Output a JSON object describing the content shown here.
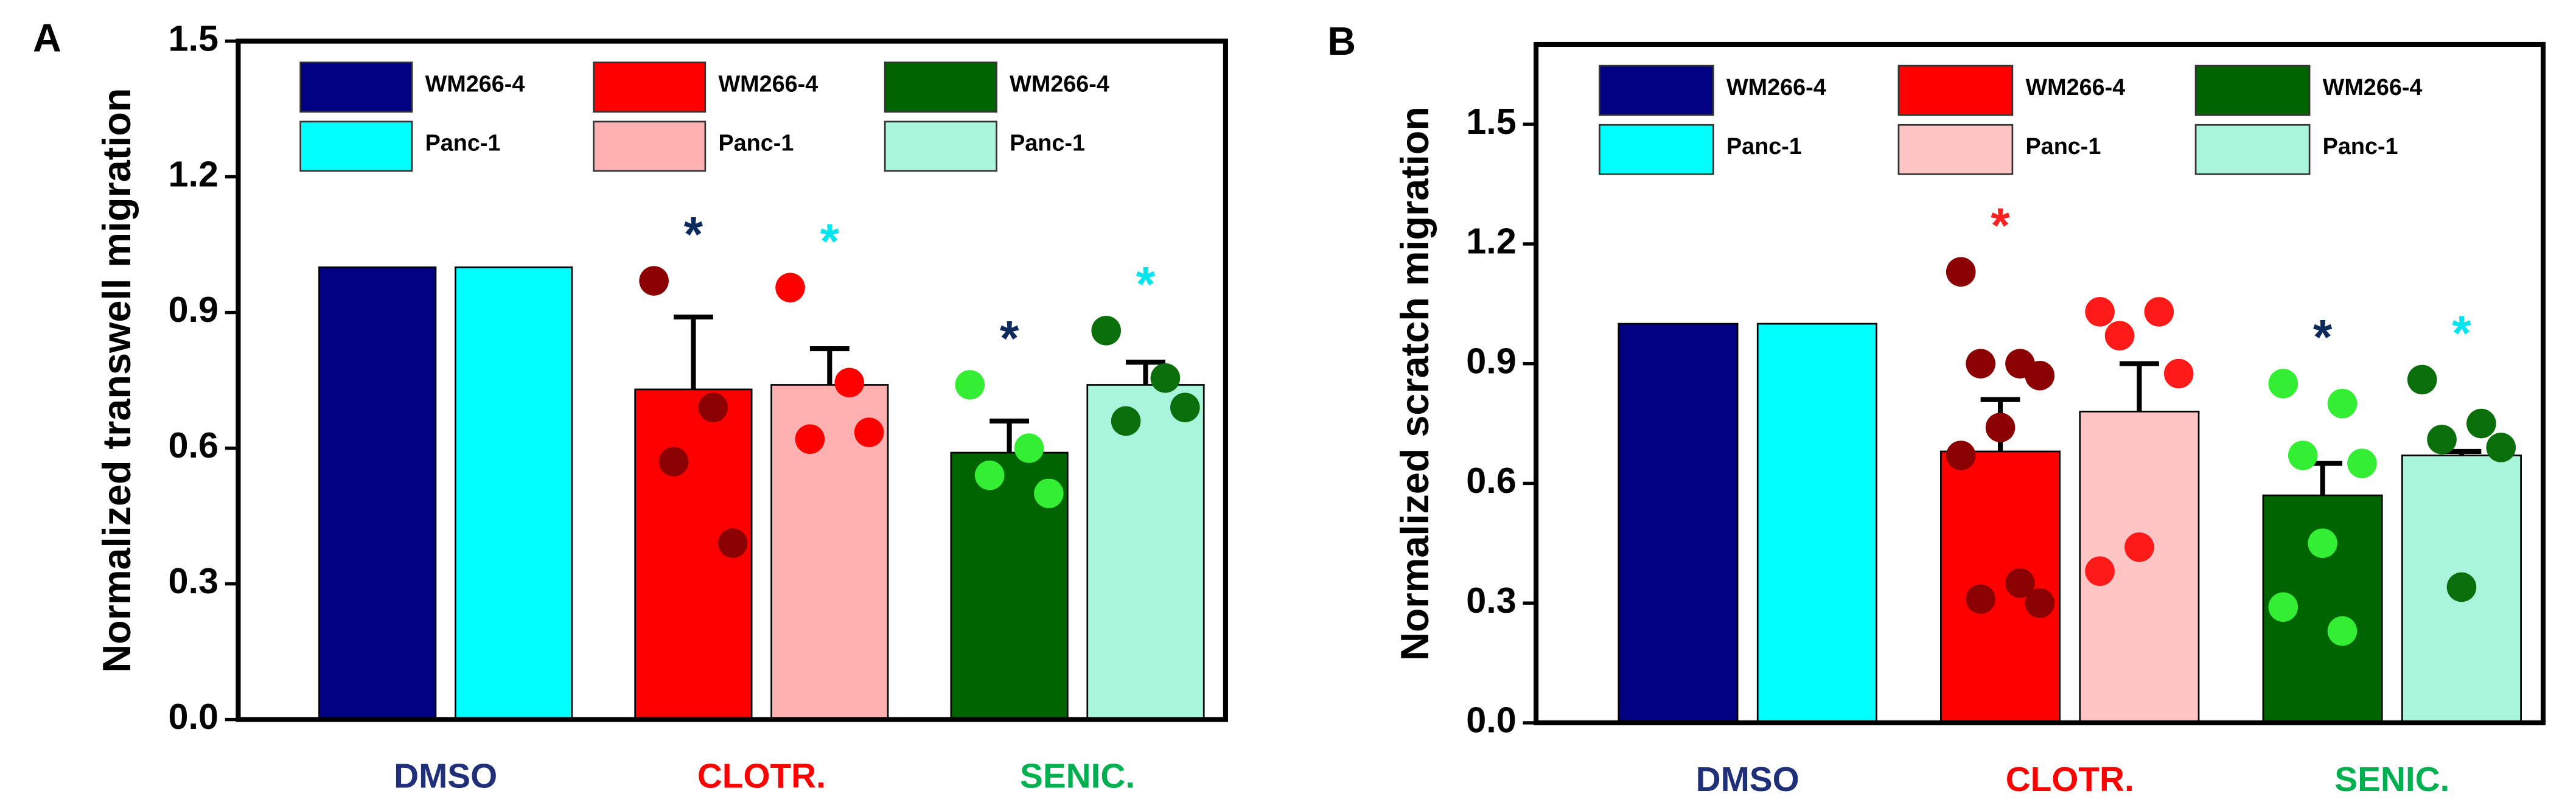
{
  "chart_data": [
    {
      "type": "bar",
      "panel_label": "A",
      "ylabel": "Normalized transwell migration",
      "ylim": [
        0,
        1.5
      ],
      "yticks": [
        {
          "value": 0,
          "label": "0.0"
        },
        0.3,
        0.6,
        0.9,
        1.2,
        1.5
      ],
      "groups": [
        {
          "category": "DMSO",
          "category_color": "#1f2f78",
          "bars": [
            {
              "name": "WM266-4",
              "color": "#000080",
              "value": 1.0
            },
            {
              "name": "Panc-1",
              "color": "#00ffff",
              "value": 1.0
            }
          ]
        },
        {
          "category": "CLOTR.",
          "category_color": "#ff0000",
          "bars": [
            {
              "name": "WM266-4",
              "color": "#ff0000",
              "value": 0.73,
              "error": 0.16,
              "points": [
                0.97,
                0.69,
                0.57,
                0.39
              ],
              "point_color": "#8b0000",
              "annotation": "*",
              "annotation_color": "#0d2a5c"
            },
            {
              "name": "Panc-1",
              "color": "#ffb0b0",
              "value": 0.74,
              "error": 0.08,
              "points": [
                0.955,
                0.745,
                0.62,
                0.635
              ],
              "point_color": "#ff0000",
              "annotation": "*",
              "annotation_color": "#00e5ee"
            }
          ]
        },
        {
          "category": "SENIC.",
          "category_color": "#00b050",
          "bars": [
            {
              "name": "WM266-4",
              "color": "#006400",
              "value": 0.59,
              "error": 0.07,
              "points": [
                0.74,
                0.6,
                0.54,
                0.5
              ],
              "point_color": "#33ee33",
              "annotation": "*",
              "annotation_color": "#0d2a5c"
            },
            {
              "name": "Panc-1",
              "color": "#a8f5dc",
              "value": 0.74,
              "error": 0.05,
              "points": [
                0.86,
                0.755,
                0.66,
                0.69
              ],
              "point_color": "#0a6e0a",
              "annotation": "*",
              "annotation_color": "#00e5ee"
            }
          ]
        }
      ]
    },
    {
      "type": "bar",
      "panel_label": "B",
      "ylabel": "Normalized scratch migration",
      "ylim": [
        0,
        1.7
      ],
      "yticks": [
        {
          "value": 0,
          "label": "0.0"
        },
        0.3,
        0.6,
        0.9,
        1.2,
        1.5
      ],
      "groups": [
        {
          "category": "DMSO",
          "category_color": "#1f2f78",
          "bars": [
            {
              "name": "WM266-4",
              "color": "#000080",
              "value": 1.0
            },
            {
              "name": "Panc-1",
              "color": "#00ffff",
              "value": 1.0
            }
          ]
        },
        {
          "category": "CLOTR.",
          "category_color": "#ff0000",
          "bars": [
            {
              "name": "WM266-4",
              "color": "#ff0000",
              "value": 0.68,
              "error": 0.13,
              "points": [
                1.13,
                0.9,
                0.9,
                0.87,
                0.74,
                0.67,
                0.35,
                0.31,
                0.3
              ],
              "point_color": "#8b0000",
              "annotation": "*",
              "annotation_color": "#ff2020"
            },
            {
              "name": "Panc-1",
              "color": "#ffc4c4",
              "value": 0.78,
              "error": 0.12,
              "points": [
                1.03,
                1.03,
                0.97,
                0.875,
                0.44,
                0.38
              ],
              "point_color": "#ff1a1a"
            }
          ]
        },
        {
          "category": "SENIC.",
          "category_color": "#00b050",
          "bars": [
            {
              "name": "WM266-4",
              "color": "#006400",
              "value": 0.57,
              "error": 0.08,
              "points": [
                0.85,
                0.8,
                0.67,
                0.65,
                0.45,
                0.29,
                0.23
              ],
              "point_color": "#33ee33",
              "annotation": "*",
              "annotation_color": "#0d2a5c"
            },
            {
              "name": "Panc-1",
              "color": "#a8f5dc",
              "value": 0.67,
              "error": 0.01,
              "points": [
                0.86,
                0.75,
                0.71,
                0.69,
                0.34
              ],
              "point_color": "#0a6e0a",
              "annotation": "*",
              "annotation_color": "#00e5ee"
            }
          ]
        }
      ]
    }
  ]
}
